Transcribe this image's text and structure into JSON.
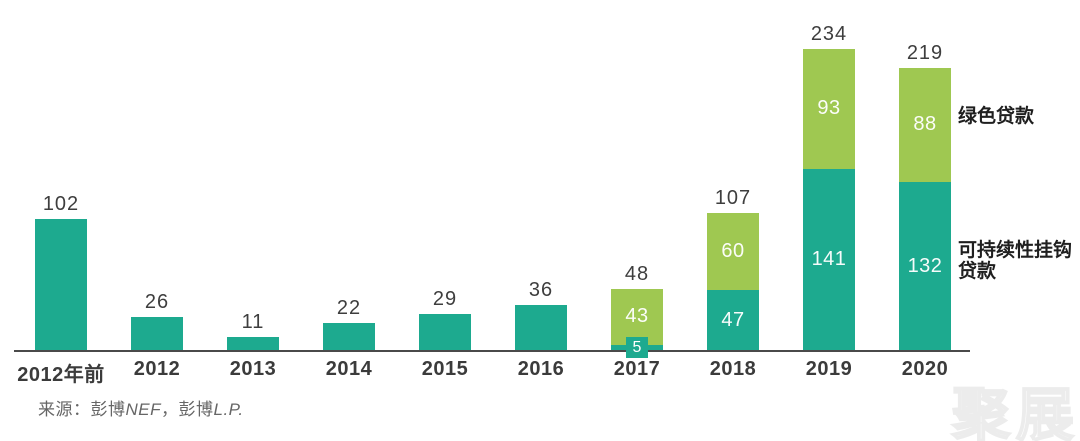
{
  "chart_data": {
    "type": "bar",
    "stacked": true,
    "title": "",
    "xlabel": "",
    "ylabel": "",
    "ylim": [
      0,
      250
    ],
    "grid": false,
    "legend_position": "right-annotations",
    "categories": [
      "2012年前",
      "2012",
      "2013",
      "2014",
      "2015",
      "2016",
      "2017",
      "2018",
      "2019",
      "2020"
    ],
    "series": [
      {
        "name": "可持续性挂钩贷款",
        "color": "#1DAA8F",
        "values": [
          102,
          26,
          11,
          22,
          29,
          36,
          5,
          47,
          141,
          132
        ]
      },
      {
        "name": "绿色贷款",
        "color": "#9FC851",
        "values": [
          0,
          0,
          0,
          0,
          0,
          0,
          43,
          60,
          93,
          88
        ]
      }
    ],
    "totals": [
      102,
      26,
      11,
      22,
      29,
      36,
      48,
      107,
      234,
      219
    ]
  },
  "annotations": {
    "green_label": "绿色贷款",
    "sll_label_line1": "可持续性挂钩",
    "sll_label_line2": "贷款"
  },
  "source": {
    "p1": "来源：彭博",
    "p2": "NEF",
    "p3": "，彭博",
    "p4": "L.P."
  },
  "watermark": "聚展",
  "colors": {
    "teal": "#1DAA8F",
    "green": "#9FC851",
    "value_label": "#3e3e3e",
    "axis": "#4a4a4a",
    "category_label": "#3b3b3b",
    "annotation_text": "#1f1f1f",
    "source_text": "#666666"
  }
}
